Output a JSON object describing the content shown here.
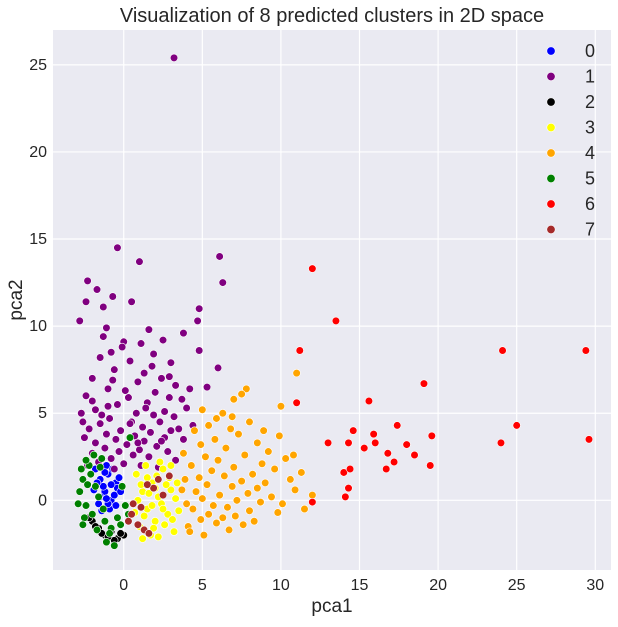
{
  "chart_data": {
    "type": "scatter",
    "title": "Visualization of 8 predicted clusters in 2D space",
    "xlabel": "pca1",
    "ylabel": "pca2",
    "xlim": [
      -4.5,
      31.0
    ],
    "ylim": [
      -4.0,
      27.0
    ],
    "x_ticks": [
      0,
      5,
      10,
      15,
      20,
      25,
      30
    ],
    "y_ticks": [
      0,
      5,
      10,
      15,
      20,
      25
    ],
    "grid": true,
    "legend_position": "top-right",
    "background_color": "#eaeaf2",
    "series": [
      {
        "name": "0",
        "color": "#0000ff",
        "points": [
          [
            -1.8,
            1.8
          ],
          [
            -1.5,
            1.2
          ],
          [
            -1.2,
            0.5
          ],
          [
            -1.0,
            1.5
          ],
          [
            -0.8,
            0.0
          ],
          [
            -0.5,
            1.0
          ],
          [
            -1.6,
            -0.2
          ],
          [
            -1.3,
            0.8
          ],
          [
            -0.9,
            -0.5
          ],
          [
            -0.6,
            0.3
          ],
          [
            -1.1,
            2.0
          ],
          [
            -0.4,
            0.7
          ],
          [
            -1.4,
            -0.6
          ],
          [
            -0.7,
            1.8
          ],
          [
            -1.9,
            0.6
          ],
          [
            -1.0,
            -0.2
          ],
          [
            -0.3,
            1.3
          ],
          [
            -1.7,
            1.0
          ],
          [
            -1.2,
            1.6
          ],
          [
            -0.8,
            0.9
          ],
          [
            -0.5,
            -0.3
          ],
          [
            -1.5,
            0.2
          ],
          [
            -0.2,
            0.5
          ],
          [
            -1.1,
            0.1
          ]
        ]
      },
      {
        "name": "1",
        "color": "#800080",
        "points": [
          [
            3.2,
            25.4
          ],
          [
            -0.4,
            14.5
          ],
          [
            6.1,
            14.0
          ],
          [
            1.0,
            13.7
          ],
          [
            -2.3,
            12.6
          ],
          [
            -1.7,
            12.1
          ],
          [
            6.3,
            12.5
          ],
          [
            -0.7,
            11.7
          ],
          [
            -2.4,
            11.4
          ],
          [
            -1.3,
            11.1
          ],
          [
            0.5,
            11.4
          ],
          [
            4.8,
            11.0
          ],
          [
            -2.8,
            10.3
          ],
          [
            4.7,
            10.3
          ],
          [
            -1.1,
            9.9
          ],
          [
            1.6,
            9.8
          ],
          [
            3.8,
            9.6
          ],
          [
            -1.3,
            9.4
          ],
          [
            0.0,
            9.1
          ],
          [
            2.5,
            9.2
          ],
          [
            1.1,
            9.0
          ],
          [
            4.8,
            8.6
          ],
          [
            -0.8,
            8.5
          ],
          [
            1.9,
            8.4
          ],
          [
            -1.5,
            8.2
          ],
          [
            0.4,
            8.0
          ],
          [
            3.0,
            7.9
          ],
          [
            6.0,
            7.6
          ],
          [
            -0.6,
            7.5
          ],
          [
            1.3,
            7.3
          ],
          [
            2.4,
            7.0
          ],
          [
            -2.0,
            7.0
          ],
          [
            0.9,
            6.8
          ],
          [
            3.3,
            6.6
          ],
          [
            5.3,
            6.5
          ],
          [
            -1.0,
            6.4
          ],
          [
            2.0,
            6.2
          ],
          [
            -2.4,
            6.0
          ],
          [
            0.3,
            5.9
          ],
          [
            3.7,
            5.8
          ],
          [
            1.5,
            5.6
          ],
          [
            -0.4,
            5.5
          ],
          [
            4.0,
            5.3
          ],
          [
            -1.8,
            5.2
          ],
          [
            2.6,
            5.1
          ],
          [
            0.8,
            5.0
          ],
          [
            -2.7,
            5.0
          ],
          [
            1.9,
            4.9
          ],
          [
            3.2,
            4.8
          ],
          [
            -0.9,
            4.7
          ],
          [
            0.5,
            4.5
          ],
          [
            2.3,
            4.5
          ],
          [
            -1.5,
            4.4
          ],
          [
            4.4,
            4.3
          ],
          [
            1.2,
            4.2
          ],
          [
            -2.2,
            4.1
          ],
          [
            -0.2,
            4.0
          ],
          [
            3.0,
            4.0
          ],
          [
            1.7,
            3.9
          ],
          [
            -1.1,
            3.8
          ],
          [
            0.7,
            3.7
          ],
          [
            2.6,
            3.6
          ],
          [
            -2.5,
            3.6
          ],
          [
            -0.5,
            3.5
          ],
          [
            3.8,
            3.5
          ],
          [
            1.3,
            3.4
          ],
          [
            -1.8,
            3.3
          ],
          [
            0.2,
            3.2
          ],
          [
            2.1,
            3.1
          ],
          [
            -1.2,
            3.0
          ],
          [
            1.0,
            2.9
          ],
          [
            -0.3,
            2.8
          ],
          [
            2.8,
            2.8
          ],
          [
            -2.0,
            2.7
          ],
          [
            0.6,
            2.6
          ],
          [
            1.6,
            2.5
          ],
          [
            -0.8,
            2.4
          ],
          [
            3.3,
            2.3
          ],
          [
            -1.6,
            2.2
          ],
          [
            0.0,
            2.1
          ],
          [
            1.1,
            2.0
          ],
          [
            -2.3,
            2.0
          ],
          [
            2.2,
            1.9
          ],
          [
            -0.6,
            1.8
          ],
          [
            -1.4,
            4.9
          ],
          [
            0.1,
            6.3
          ],
          [
            1.8,
            7.7
          ],
          [
            -0.1,
            8.8
          ],
          [
            2.9,
            5.9
          ],
          [
            -0.7,
            6.9
          ],
          [
            1.4,
            5.3
          ],
          [
            3.5,
            4.1
          ],
          [
            -2.0,
            5.7
          ],
          [
            0.4,
            4.4
          ],
          [
            2.4,
            3.4
          ],
          [
            -1.0,
            5.4
          ],
          [
            0.9,
            3.3
          ],
          [
            -2.6,
            4.5
          ],
          [
            4.2,
            6.4
          ],
          [
            2.9,
            7.1
          ]
        ]
      },
      {
        "name": "2",
        "color": "#000000",
        "points": [
          [
            -2.0,
            -1.2
          ],
          [
            -1.6,
            -1.6
          ],
          [
            -1.2,
            -2.0
          ],
          [
            -0.8,
            -1.8
          ],
          [
            -0.4,
            -2.2
          ],
          [
            0.0,
            -2.0
          ],
          [
            -1.4,
            -1.9
          ],
          [
            -0.6,
            -2.3
          ],
          [
            -1.8,
            -1.5
          ],
          [
            -1.0,
            -2.1
          ],
          [
            -0.2,
            -1.9
          ],
          [
            -2.2,
            -1.0
          ]
        ]
      },
      {
        "name": "3",
        "color": "#ffff00",
        "points": [
          [
            0.8,
            1.5
          ],
          [
            1.2,
            0.5
          ],
          [
            1.5,
            -0.5
          ],
          [
            1.8,
            1.0
          ],
          [
            2.0,
            -1.2
          ],
          [
            2.2,
            0.2
          ],
          [
            2.5,
            1.8
          ],
          [
            2.8,
            -0.8
          ],
          [
            3.0,
            0.6
          ],
          [
            3.2,
            -1.8
          ],
          [
            1.0,
            -1.5
          ],
          [
            1.4,
            2.0
          ],
          [
            1.7,
            -2.0
          ],
          [
            2.1,
            1.4
          ],
          [
            2.4,
            -0.2
          ],
          [
            2.7,
            0.9
          ],
          [
            3.1,
            -1.1
          ],
          [
            0.9,
            0.0
          ],
          [
            1.3,
            -0.9
          ],
          [
            1.6,
            0.4
          ],
          [
            1.9,
            -1.6
          ],
          [
            2.3,
            2.2
          ],
          [
            2.6,
            -1.4
          ],
          [
            2.9,
            1.3
          ],
          [
            3.3,
            0.1
          ],
          [
            3.5,
            -0.6
          ],
          [
            1.1,
            0.9
          ],
          [
            1.5,
            1.3
          ],
          [
            2.0,
            0.7
          ],
          [
            2.5,
            -0.5
          ],
          [
            0.7,
            -0.7
          ],
          [
            3.4,
            1.0
          ],
          [
            1.8,
            -0.3
          ],
          [
            2.2,
            -2.1
          ],
          [
            3.0,
            2.0
          ],
          [
            1.2,
            -2.2
          ]
        ]
      },
      {
        "name": "4",
        "color": "#ffa500",
        "points": [
          [
            11.0,
            7.3
          ],
          [
            7.8,
            6.4
          ],
          [
            7.5,
            6.1
          ],
          [
            7.0,
            5.8
          ],
          [
            5.0,
            5.2
          ],
          [
            6.3,
            5.0
          ],
          [
            6.9,
            4.8
          ],
          [
            5.9,
            4.7
          ],
          [
            10.0,
            5.4
          ],
          [
            8.0,
            4.5
          ],
          [
            5.4,
            4.3
          ],
          [
            6.8,
            4.1
          ],
          [
            4.5,
            4.0
          ],
          [
            7.3,
            3.8
          ],
          [
            5.8,
            3.5
          ],
          [
            8.5,
            3.3
          ],
          [
            4.9,
            3.2
          ],
          [
            6.5,
            3.0
          ],
          [
            9.2,
            2.8
          ],
          [
            7.7,
            2.6
          ],
          [
            5.2,
            2.5
          ],
          [
            10.3,
            2.4
          ],
          [
            6.0,
            2.3
          ],
          [
            8.8,
            2.1
          ],
          [
            4.3,
            2.0
          ],
          [
            7.0,
            1.9
          ],
          [
            9.6,
            1.8
          ],
          [
            5.6,
            1.7
          ],
          [
            11.3,
            1.6
          ],
          [
            8.2,
            1.5
          ],
          [
            6.4,
            1.4
          ],
          [
            4.8,
            1.3
          ],
          [
            10.6,
            1.2
          ],
          [
            7.5,
            1.1
          ],
          [
            9.0,
            1.0
          ],
          [
            5.3,
            0.9
          ],
          [
            6.9,
            0.8
          ],
          [
            8.5,
            0.7
          ],
          [
            10.9,
            0.6
          ],
          [
            4.6,
            0.5
          ],
          [
            7.9,
            0.4
          ],
          [
            6.1,
            0.3
          ],
          [
            9.4,
            0.2
          ],
          [
            5.0,
            0.1
          ],
          [
            7.2,
            0.0
          ],
          [
            8.7,
            -0.1
          ],
          [
            10.1,
            -0.2
          ],
          [
            5.7,
            -0.3
          ],
          [
            6.6,
            -0.4
          ],
          [
            4.4,
            -0.5
          ],
          [
            8.0,
            -0.6
          ],
          [
            9.8,
            -0.7
          ],
          [
            5.4,
            -0.8
          ],
          [
            7.1,
            -0.9
          ],
          [
            6.3,
            -1.0
          ],
          [
            4.9,
            -1.1
          ],
          [
            8.3,
            -1.2
          ],
          [
            5.9,
            -1.3
          ],
          [
            7.6,
            -1.4
          ],
          [
            4.1,
            -1.5
          ],
          [
            3.8,
            2.7
          ],
          [
            3.9,
            1.2
          ],
          [
            4.0,
            -0.2
          ],
          [
            4.2,
            -1.8
          ],
          [
            3.7,
            0.6
          ],
          [
            6.7,
            -1.7
          ],
          [
            5.1,
            -2.0
          ],
          [
            11.5,
            -0.5
          ],
          [
            10.8,
            2.6
          ],
          [
            9.9,
            3.7
          ],
          [
            12.0,
            0.3
          ],
          [
            8.9,
            4.0
          ]
        ]
      },
      {
        "name": "5",
        "color": "#008000",
        "points": [
          [
            -2.6,
            1.2
          ],
          [
            -2.2,
            2.0
          ],
          [
            -1.8,
            0.8
          ],
          [
            -1.4,
            2.4
          ],
          [
            -2.4,
            -0.3
          ],
          [
            -2.0,
            -0.8
          ],
          [
            -1.6,
            0.2
          ],
          [
            -1.2,
            -1.2
          ],
          [
            -0.8,
            -1.6
          ],
          [
            -0.4,
            -1.0
          ],
          [
            -2.8,
            0.5
          ],
          [
            -2.5,
            -1.0
          ],
          [
            -1.1,
            -2.4
          ],
          [
            -0.2,
            -1.4
          ],
          [
            0.3,
            -0.8
          ],
          [
            -2.7,
            1.8
          ],
          [
            -1.9,
            2.6
          ],
          [
            -1.3,
            -0.5
          ],
          [
            0.4,
            3.6
          ],
          [
            -2.3,
            0.9
          ],
          [
            -0.6,
            -2.6
          ],
          [
            -2.9,
            -0.2
          ],
          [
            -1.7,
            -1.7
          ],
          [
            -2.1,
            1.5
          ],
          [
            0.1,
            -0.3
          ],
          [
            -1.5,
            1.9
          ],
          [
            -2.6,
            -1.4
          ],
          [
            -0.9,
            -1.9
          ],
          [
            -0.1,
            0.8
          ],
          [
            -2.4,
            2.3
          ]
        ]
      },
      {
        "name": "6",
        "color": "#ff0000",
        "points": [
          [
            12.0,
            13.3
          ],
          [
            13.5,
            10.3
          ],
          [
            11.2,
            8.6
          ],
          [
            24.1,
            8.6
          ],
          [
            29.4,
            8.6
          ],
          [
            19.1,
            6.7
          ],
          [
            11.0,
            5.6
          ],
          [
            15.6,
            5.7
          ],
          [
            17.4,
            4.3
          ],
          [
            14.6,
            4.0
          ],
          [
            15.9,
            3.8
          ],
          [
            19.6,
            3.7
          ],
          [
            29.6,
            3.5
          ],
          [
            13.0,
            3.3
          ],
          [
            14.3,
            3.3
          ],
          [
            16.0,
            3.3
          ],
          [
            18.0,
            3.2
          ],
          [
            24.0,
            3.3
          ],
          [
            25.0,
            4.3
          ],
          [
            15.3,
            3.0
          ],
          [
            16.8,
            2.7
          ],
          [
            18.5,
            2.6
          ],
          [
            14.0,
            1.6
          ],
          [
            14.4,
            1.8
          ],
          [
            16.7,
            1.8
          ],
          [
            17.2,
            2.2
          ],
          [
            19.5,
            2.0
          ],
          [
            14.3,
            0.7
          ],
          [
            12.0,
            -0.1
          ],
          [
            14.1,
            0.2
          ]
        ]
      },
      {
        "name": "7",
        "color": "#a52a2a",
        "points": [
          [
            0.5,
            -0.8
          ],
          [
            0.9,
            -1.4
          ],
          [
            1.3,
            -1.7
          ],
          [
            2.2,
            1.2
          ],
          [
            1.9,
            0.7
          ],
          [
            0.6,
            -0.2
          ],
          [
            1.6,
            -1.9
          ],
          [
            2.9,
            1.4
          ],
          [
            0.3,
            -1.2
          ],
          [
            1.1,
            -0.4
          ],
          [
            2.5,
            0.3
          ],
          [
            1.5,
            0.9
          ]
        ]
      }
    ]
  }
}
